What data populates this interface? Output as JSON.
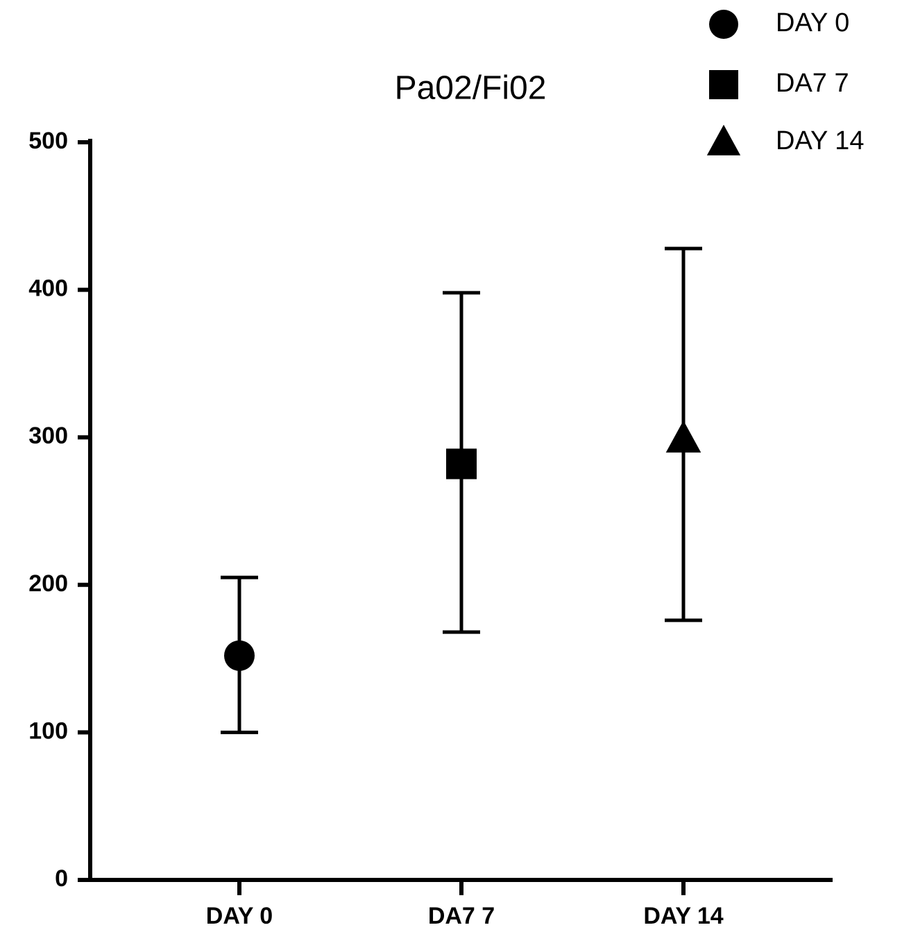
{
  "chart_data": {
    "type": "scatter",
    "title": "Pa02/Fi02",
    "categories": [
      "DAY 0",
      "DA7 7",
      "DAY 14"
    ],
    "series": [
      {
        "name": "DAY 0",
        "marker": "circle",
        "color": "#000000",
        "values": [
          152,
          null,
          null
        ],
        "lower": [
          100,
          null,
          null
        ],
        "upper": [
          205,
          null,
          null
        ]
      },
      {
        "name": "DA7 7",
        "marker": "square",
        "color": "#000000",
        "values": [
          null,
          282,
          null
        ],
        "lower": [
          null,
          168,
          null
        ],
        "upper": [
          null,
          398,
          null
        ]
      },
      {
        "name": "DAY 14",
        "marker": "triangle",
        "color": "#000000",
        "values": [
          null,
          null,
          299
        ],
        "lower": [
          null,
          null,
          176
        ],
        "upper": [
          null,
          null,
          428
        ]
      }
    ],
    "ylim": [
      0,
      500
    ],
    "yticks": [
      0,
      100,
      200,
      300,
      400,
      500
    ],
    "grid": false,
    "legend": "top-right"
  }
}
